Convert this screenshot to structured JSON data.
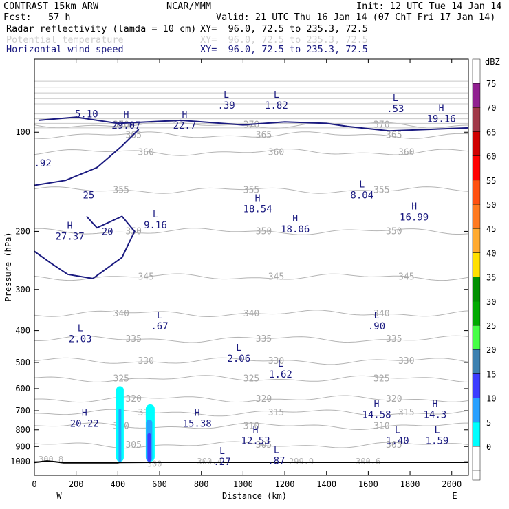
{
  "header": {
    "title": "CONTRAST 15km ARW",
    "org": "NCAR/MMM",
    "init": "Init: 12 UTC Tue 14 Jan 14",
    "fcst": "Fcst:   57 h",
    "valid": "Valid: 21 UTC Thu 16 Jan 14 (07 ChT Fri 17 Jan 14)",
    "fields": [
      {
        "name": "Radar reflectivity (lamda = 10 cm)",
        "xy": "XY=  96.0, 72.5 to 235.3, 72.5",
        "color": "#000000"
      },
      {
        "name": "Potential temperature",
        "xy": "XY=  96.0, 72.5 to 235.3, 72.5",
        "color": "#cfcfcf"
      },
      {
        "name": "Horizontal wind speed",
        "xy": "XY=  96.0, 72.5 to 235.3, 72.5",
        "color": "#1a1a80"
      }
    ]
  },
  "chart_data": {
    "type": "cross-section contour",
    "xlabel": "Distance (km)",
    "ylabel": "Pressure (hPa)",
    "xlim": [
      0,
      2080
    ],
    "ylim": [
      1100,
      60
    ],
    "y_scale": "log",
    "x_ticks": [
      "0",
      "200",
      "400",
      "600",
      "800",
      "1000",
      "1200",
      "1400",
      "1600",
      "1800",
      "2000"
    ],
    "y_ticks": [
      "100",
      "200",
      "300",
      "400",
      "500",
      "600",
      "700",
      "800",
      "900",
      "1000"
    ],
    "x_end_labels": {
      "left": "W",
      "right": "E"
    },
    "colorbar": {
      "unit": "dBZ",
      "levels": [
        0,
        5,
        10,
        15,
        20,
        25,
        30,
        35,
        40,
        45,
        50,
        55,
        60,
        65,
        70,
        75
      ],
      "colors": [
        "#00ffff",
        "#28a0ff",
        "#3c3cff",
        "#3c80b0",
        "#46ff46",
        "#00aa00",
        "#009000",
        "#ffe000",
        "#ffaa30",
        "#ff7a20",
        "#ff5010",
        "#ff0000",
        "#d00000",
        "#a03848",
        "#902090",
        "#c080c0"
      ]
    },
    "theta_contours": [
      {
        "label": "370",
        "p": 95
      },
      {
        "label": "365",
        "p": 102
      },
      {
        "label": "360",
        "p": 115
      },
      {
        "label": "355",
        "p": 150
      },
      {
        "label": "350",
        "p": 200
      },
      {
        "label": "345",
        "p": 275
      },
      {
        "label": "340",
        "p": 355
      },
      {
        "label": "335",
        "p": 425
      },
      {
        "label": "330",
        "p": 495
      },
      {
        "label": "325",
        "p": 560
      },
      {
        "label": "320",
        "p": 645
      },
      {
        "label": "315",
        "p": 710
      },
      {
        "label": "310",
        "p": 780
      },
      {
        "label": "305",
        "p": 890
      }
    ],
    "theta_surface_labels": [
      {
        "text": "300.8",
        "x": 0,
        "p": 985
      },
      {
        "text": "300",
        "x": 520,
        "p": 1015
      },
      {
        "text": "300.4",
        "x": 760,
        "p": 1000
      },
      {
        "text": "299.9",
        "x": 1200,
        "p": 1000
      },
      {
        "text": "300.6",
        "x": 1520,
        "p": 1000
      }
    ],
    "wind_extrema": [
      {
        "kind": "H",
        "value": "29.07",
        "x": 440,
        "p": 92
      },
      {
        "kind": "H",
        "value": "22.7",
        "x": 720,
        "p": 92
      },
      {
        "kind": "L",
        "value": ".39",
        "x": 920,
        "p": 80
      },
      {
        "kind": "L",
        "value": "1.82",
        "x": 1160,
        "p": 80
      },
      {
        "kind": "L",
        "value": ".53",
        "x": 1730,
        "p": 82
      },
      {
        "kind": "H",
        "value": "19.16",
        "x": 1950,
        "p": 88
      },
      {
        "kind": "",
        "value": "5.10",
        "x": 250,
        "p": 85
      },
      {
        "kind": "",
        "value": ".92",
        "x": 40,
        "p": 120
      },
      {
        "kind": "L",
        "value": "8.04",
        "x": 1570,
        "p": 150
      },
      {
        "kind": "H",
        "value": "18.54",
        "x": 1070,
        "p": 165
      },
      {
        "kind": "H",
        "value": "18.06",
        "x": 1250,
        "p": 190
      },
      {
        "kind": "H",
        "value": "16.99",
        "x": 1820,
        "p": 175
      },
      {
        "kind": "H",
        "value": "27.37",
        "x": 170,
        "p": 200
      },
      {
        "kind": "L",
        "value": "9.16",
        "x": 580,
        "p": 185
      },
      {
        "kind": "L",
        "value": ".67",
        "x": 600,
        "p": 375
      },
      {
        "kind": "L",
        "value": "2.03",
        "x": 220,
        "p": 410
      },
      {
        "kind": "L",
        "value": ".90",
        "x": 1640,
        "p": 375
      },
      {
        "kind": "L",
        "value": "2.06",
        "x": 980,
        "p": 470
      },
      {
        "kind": "L",
        "value": "1.62",
        "x": 1180,
        "p": 525
      },
      {
        "kind": "H",
        "value": "20.22",
        "x": 240,
        "p": 740
      },
      {
        "kind": "H",
        "value": "15.38",
        "x": 780,
        "p": 740
      },
      {
        "kind": "H",
        "value": "14.58",
        "x": 1640,
        "p": 695
      },
      {
        "kind": "H",
        "value": "14.3",
        "x": 1920,
        "p": 695
      },
      {
        "kind": "H",
        "value": "12.53",
        "x": 1060,
        "p": 835
      },
      {
        "kind": "L",
        "value": "1.40",
        "x": 1740,
        "p": 835
      },
      {
        "kind": "L",
        "value": "1.59",
        "x": 1930,
        "p": 835
      },
      {
        "kind": "L",
        "value": ".27",
        "x": 900,
        "p": 965
      },
      {
        "kind": "L",
        "value": ".87",
        "x": 1160,
        "p": 960
      }
    ],
    "wind_contour_labels": [
      {
        "value": "25",
        "x": 260,
        "p": 155
      },
      {
        "value": "20",
        "x": 350,
        "p": 200
      }
    ]
  }
}
